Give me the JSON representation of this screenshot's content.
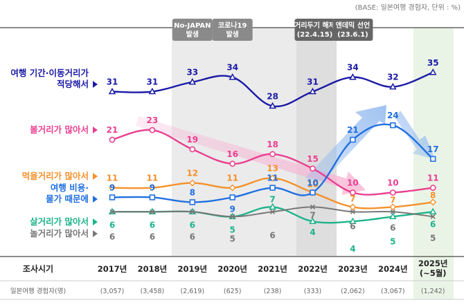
{
  "base_note": "(BASE: 일본여행 경험자, 단위 : %)",
  "table": {
    "row1_label": "조사시기",
    "row2_label": "일본여행 경험자(명)",
    "sample_sizes": [
      "(3,057)",
      "(3,458)",
      "(2,619)",
      "(625)",
      "(238)",
      "(333)",
      "(2,062)",
      "(3,067)",
      "(1,242)"
    ]
  },
  "chart_data": {
    "type": "line",
    "categories": [
      "2017년",
      "2018년",
      "2019년",
      "2020년",
      "2021년",
      "2022년",
      "2023년",
      "2024년",
      "2025년"
    ],
    "category_sub": [
      "",
      "",
      "",
      "",
      "",
      "",
      "",
      "",
      "(~5월)"
    ],
    "ylim": [
      0,
      40
    ],
    "grid": false,
    "annotations": [
      {
        "label_lines": [
          "No-JAPAN",
          "발생"
        ],
        "index": 2,
        "color": "#8a8a8a"
      },
      {
        "label_lines": [
          "코로나19",
          "발생"
        ],
        "index": 3,
        "color": "#8a8a8a"
      },
      {
        "label_lines": [
          "거리두기 해제",
          "(22.4.15)"
        ],
        "index": 5,
        "color": "#666666"
      },
      {
        "label_lines": [
          "엔데믹 선언",
          "(23.6.1)"
        ],
        "index": 6,
        "color": "#666666"
      }
    ],
    "series": [
      {
        "name_lines": [
          "여행 기간·이동거리가",
          "적당해서"
        ],
        "color": "#1a1aa6",
        "marker": "triangle",
        "values": [
          31,
          31,
          33,
          34,
          28,
          31,
          34,
          32,
          35
        ]
      },
      {
        "name_lines": [
          "볼거리가 많아서"
        ],
        "color": "#ea3f8f",
        "marker": "circle",
        "values": [
          21,
          23,
          19,
          16,
          18,
          15,
          10,
          10,
          11
        ]
      },
      {
        "name_lines": [
          "먹을거리가 많아서"
        ],
        "color": "#f5902a",
        "marker": "diamond",
        "values": [
          11,
          11,
          12,
          11,
          13,
          10,
          7,
          7,
          8
        ]
      },
      {
        "name_lines": [
          "여행 비용·",
          "물가 때문에"
        ],
        "color": "#1f6fe0",
        "marker": "square",
        "values": [
          9,
          9,
          8,
          9,
          11,
          10,
          21,
          24,
          17
        ]
      },
      {
        "name_lines": [
          "살거리가 많아서"
        ],
        "color": "#1db38a",
        "marker": "triangle-up",
        "values": [
          6,
          6,
          6,
          5,
          7,
          4,
          4,
          5,
          6
        ]
      },
      {
        "name_lines": [
          "놀거리가 많아서"
        ],
        "color": "#777777",
        "marker": "x",
        "values": [
          6,
          6,
          6,
          5,
          6,
          7,
          6,
          6,
          5
        ]
      }
    ]
  }
}
